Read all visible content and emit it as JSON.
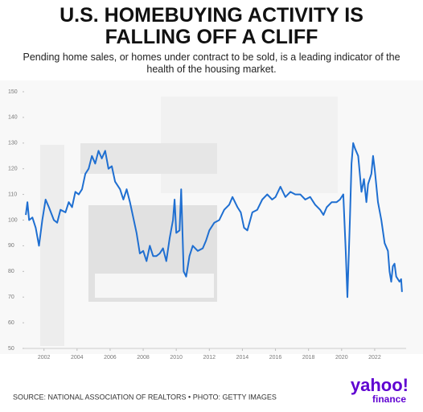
{
  "chart_data": {
    "type": "line",
    "title": "U.S. HOMEBUYING ACTIVITY IS FALLING OFF A CLIFF",
    "subtitle": "Pending home sales, or homes under contract to be sold, is a leading indicator of the health of the housing market.",
    "source": "SOURCE: NATIONAL ASSOCIATION OF REALTORS • PHOTO: GETTY IMAGES",
    "logo": "yahoo!",
    "logo_sub": "finance",
    "xlim": [
      2000.8,
      2023.9
    ],
    "xticks": [
      2002,
      2004,
      2006,
      2008,
      2010,
      2012,
      2014,
      2016,
      2018,
      2020,
      2022
    ],
    "ylim": [
      50,
      150
    ],
    "yticks": [
      50,
      60,
      70,
      80,
      90,
      100,
      110,
      120,
      130,
      140,
      150
    ],
    "series": [
      {
        "color": "#1f6fd1",
        "x": [
          2000.9,
          2001.0,
          2001.1,
          2001.3,
          2001.5,
          2001.7,
          2001.9,
          2002.1,
          2002.3,
          2002.6,
          2002.8,
          2003.0,
          2003.3,
          2003.5,
          2003.7,
          2003.9,
          2004.1,
          2004.3,
          2004.5,
          2004.7,
          2004.9,
          2005.1,
          2005.3,
          2005.5,
          2005.7,
          2005.9,
          2006.1,
          2006.3,
          2006.6,
          2006.8,
          2007.0,
          2007.2,
          2007.4,
          2007.6,
          2007.8,
          2008.0,
          2008.2,
          2008.4,
          2008.6,
          2008.8,
          2009.0,
          2009.2,
          2009.4,
          2009.6,
          2009.8,
          2009.9,
          2010.0,
          2010.2,
          2010.3,
          2010.45,
          2010.6,
          2010.8,
          2011.0,
          2011.3,
          2011.6,
          2011.8,
          2012.0,
          2012.3,
          2012.6,
          2012.9,
          2013.2,
          2013.4,
          2013.7,
          2013.9,
          2014.1,
          2014.3,
          2014.6,
          2014.9,
          2015.2,
          2015.5,
          2015.8,
          2016.0,
          2016.3,
          2016.6,
          2016.9,
          2017.2,
          2017.5,
          2017.8,
          2018.1,
          2018.4,
          2018.7,
          2018.9,
          2019.1,
          2019.4,
          2019.7,
          2019.9,
          2020.1,
          2020.25,
          2020.35,
          2020.5,
          2020.6,
          2020.7,
          2020.8,
          2021.0,
          2021.2,
          2021.35,
          2021.5,
          2021.6,
          2021.8,
          2021.9,
          2022.0,
          2022.2,
          2022.4,
          2022.6,
          2022.8,
          2022.9,
          2023.0,
          2023.1,
          2023.2,
          2023.3,
          2023.5,
          2023.6,
          2023.65
        ],
        "values": [
          102,
          107,
          100,
          101,
          97,
          90,
          100,
          108,
          105,
          100,
          99,
          104,
          103,
          107,
          105,
          111,
          110,
          112,
          118,
          120,
          125,
          122,
          127,
          124,
          127,
          120,
          121,
          115,
          112,
          108,
          112,
          107,
          101,
          95,
          87,
          88,
          84,
          90,
          86,
          86,
          87,
          89,
          84,
          93,
          100,
          108,
          95,
          96,
          112,
          80,
          78,
          86,
          90,
          88,
          89,
          92,
          96,
          99,
          100,
          104,
          106,
          109,
          105,
          103,
          97,
          96,
          103,
          104,
          108,
          110,
          108,
          109,
          113,
          109,
          111,
          110,
          110,
          108,
          109,
          106,
          104,
          102,
          105,
          107,
          107,
          108,
          110,
          88,
          70,
          100,
          122,
          130,
          128,
          125,
          111,
          116,
          107,
          114,
          118,
          125,
          120,
          107,
          100,
          91,
          88,
          80,
          76,
          82,
          83,
          78,
          76,
          77,
          72
        ]
      }
    ]
  }
}
